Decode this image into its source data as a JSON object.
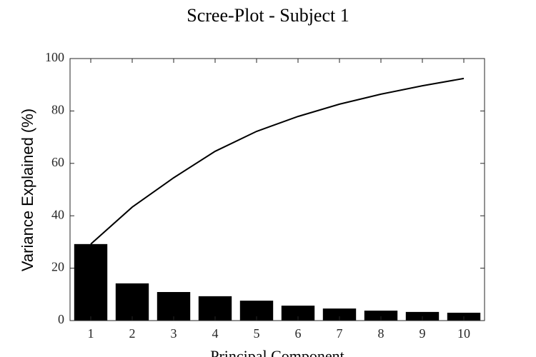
{
  "chart_data": {
    "type": "bar",
    "title": "Scree-Plot - Subject 1",
    "x_label": "Principal Component",
    "y_label": "Variance Explained (%)",
    "categories": [
      "1",
      "2",
      "3",
      "4",
      "5",
      "6",
      "7",
      "8",
      "9",
      "10"
    ],
    "series": [
      {
        "type": "bar",
        "color": "#000000",
        "values": [
          29.2,
          14.2,
          10.9,
          9.3,
          7.6,
          5.7,
          4.6,
          3.8,
          3.3,
          3.0
        ]
      },
      {
        "type": "line",
        "color": "#000000",
        "values": [
          29.2,
          43.3,
          54.5,
          64.6,
          72.2,
          77.9,
          82.6,
          86.4,
          89.6,
          92.4
        ]
      }
    ],
    "ylim": [
      0,
      100
    ],
    "yticks": [
      0,
      20,
      40,
      60,
      80,
      100
    ],
    "grid": false
  }
}
